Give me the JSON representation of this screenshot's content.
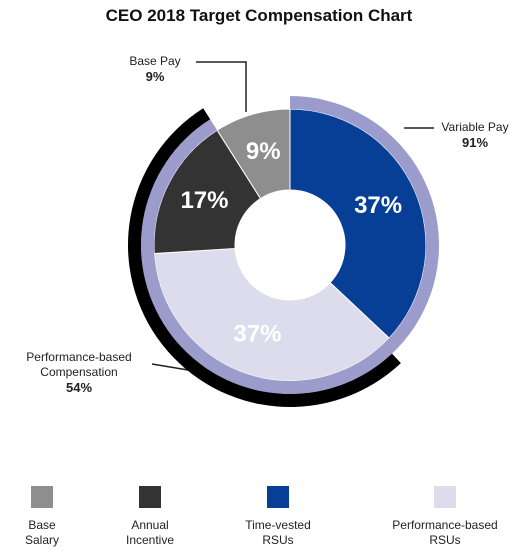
{
  "chart_data": {
    "type": "donut",
    "title": "CEO 2018 Target Compensation Chart",
    "categories": [
      "Base Salary",
      "Annual Incentive",
      "Time-vested RSUs",
      "Performance-based RSUs"
    ],
    "values": [
      9,
      17,
      37,
      37
    ],
    "value_labels": [
      "9%",
      "17%",
      "37%",
      "37%"
    ],
    "colors": [
      "#8e8e8e",
      "#333333",
      "#083f96",
      "#dcdcec"
    ],
    "rings": [
      {
        "name": "Base Pay",
        "value": 9,
        "value_label": "9%"
      },
      {
        "name": "Variable Pay",
        "value": 91,
        "value_label": "91%",
        "color": "#9c9ccc"
      },
      {
        "name": "Performance-based Compensation",
        "value": 54,
        "value_label": "54%",
        "color": "#000000"
      }
    ]
  }
}
